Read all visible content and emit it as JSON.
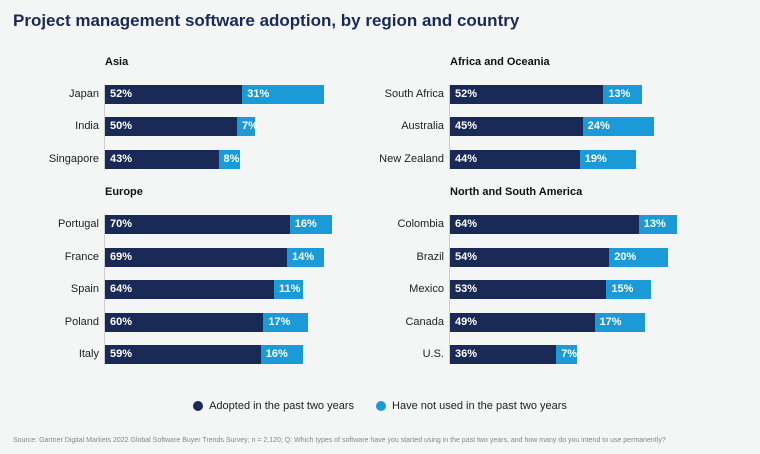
{
  "title": "Project management software adoption, by region and country",
  "colors": {
    "adopted": "#1a2a57",
    "not_used": "#1a9ad6"
  },
  "legend": [
    "Adopted in the past two years",
    "Have not used in the past two years"
  ],
  "source": "Source: Gartner Digital Markets 2022 Global Software Buyer Trends Survey; n = 2,120; Q: Which types of software have you started using in the past two years, and how many do you intend to use permanently?",
  "chart_data": [
    {
      "type": "bar",
      "stacked": true,
      "orientation": "horizontal",
      "title": "Asia",
      "categories": [
        "Japan",
        "India",
        "Singapore"
      ],
      "series": [
        {
          "name": "Adopted in the past two years",
          "values": [
            52,
            50,
            43
          ]
        },
        {
          "name": "Have not used in the past two years",
          "values": [
            31,
            7,
            8
          ]
        }
      ]
    },
    {
      "type": "bar",
      "stacked": true,
      "orientation": "horizontal",
      "title": "Europe",
      "categories": [
        "Portugal",
        "France",
        "Spain",
        "Poland",
        "Italy"
      ],
      "series": [
        {
          "name": "Adopted in the past two years",
          "values": [
            70,
            69,
            64,
            60,
            59
          ]
        },
        {
          "name": "Have not used in the past two years",
          "values": [
            16,
            14,
            11,
            17,
            16
          ]
        }
      ]
    },
    {
      "type": "bar",
      "stacked": true,
      "orientation": "horizontal",
      "title": "Africa and Oceania",
      "categories": [
        "South Africa",
        "Australia",
        "New Zealand"
      ],
      "series": [
        {
          "name": "Adopted in the past two years",
          "values": [
            52,
            45,
            44
          ]
        },
        {
          "name": "Have not used in the past two years",
          "values": [
            13,
            24,
            19
          ]
        }
      ]
    },
    {
      "type": "bar",
      "stacked": true,
      "orientation": "horizontal",
      "title": "North and South America",
      "categories": [
        "Colombia",
        "Brazil",
        "Mexico",
        "Canada",
        "U.S."
      ],
      "series": [
        {
          "name": "Adopted in the past two years",
          "values": [
            64,
            54,
            53,
            49,
            36
          ]
        },
        {
          "name": "Have not used in the past two years",
          "values": [
            13,
            20,
            15,
            17,
            7
          ]
        }
      ]
    }
  ]
}
